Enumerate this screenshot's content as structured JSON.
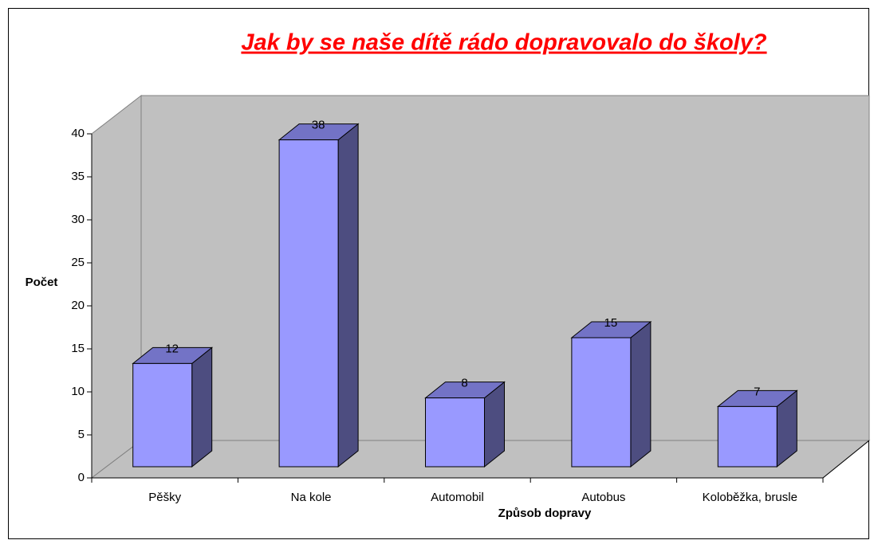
{
  "chart_data": {
    "type": "bar",
    "title": "Jak by se naše dítě rádo dopravovalo do školy?",
    "x_label": "Způsob dopravy",
    "y_label": "Počet",
    "categories": [
      "Pěšky",
      "Na kole",
      "Automobil",
      "Autobus",
      "Koloběžka, brusle"
    ],
    "values": [
      12,
      38,
      8,
      15,
      7
    ],
    "color": "#9999ff",
    "ylim": [
      0,
      40
    ],
    "yticks": [
      0,
      5,
      10,
      15,
      20,
      25,
      30,
      35,
      40
    ],
    "grid": false
  }
}
